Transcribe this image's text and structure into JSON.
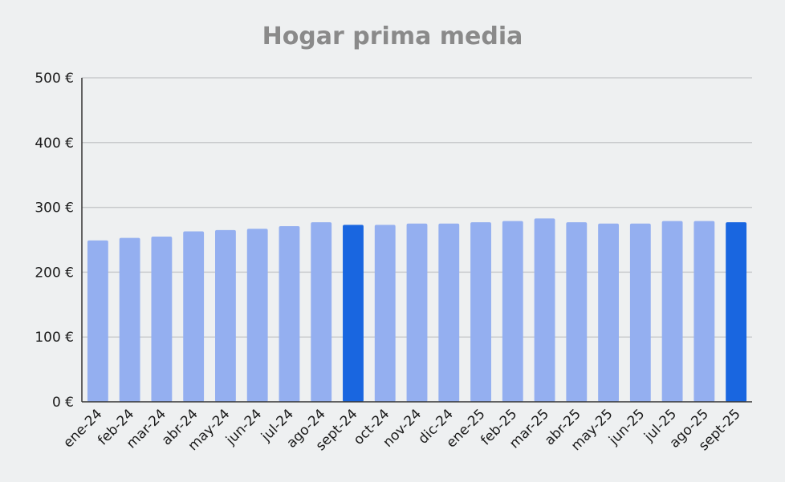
{
  "chart_data": {
    "type": "bar",
    "title": "Hogar prima media",
    "xlabel": "",
    "ylabel": "",
    "ylim": [
      0,
      500
    ],
    "yticks": [
      0,
      100,
      200,
      300,
      400,
      500
    ],
    "ytick_labels": [
      "0 €",
      "100 €",
      "200 €",
      "300 €",
      "400 €",
      "500 €"
    ],
    "grid": true,
    "categories": [
      "ene-24",
      "feb-24",
      "mar-24",
      "abr-24",
      "may-24",
      "jun-24",
      "jul-24",
      "ago-24",
      "sept-24",
      "oct-24",
      "nov-24",
      "dic-24",
      "ene-25",
      "feb-25",
      "mar-25",
      "abr-25",
      "may-25",
      "jun-25",
      "jul-25",
      "ago-25",
      "sept-25"
    ],
    "values": [
      249,
      253,
      255,
      263,
      265,
      267,
      271,
      277,
      273,
      273,
      275,
      275,
      277,
      279,
      283,
      277,
      275,
      275,
      279,
      279,
      277
    ],
    "highlighted": [
      "sept-24",
      "sept-25"
    ],
    "colors": {
      "bar": "#94aff0",
      "highlight": "#1966e0",
      "grid": "#c9cbcd",
      "axis": "#333333",
      "title": "#8a8a8a",
      "background": "#eef0f1"
    }
  }
}
